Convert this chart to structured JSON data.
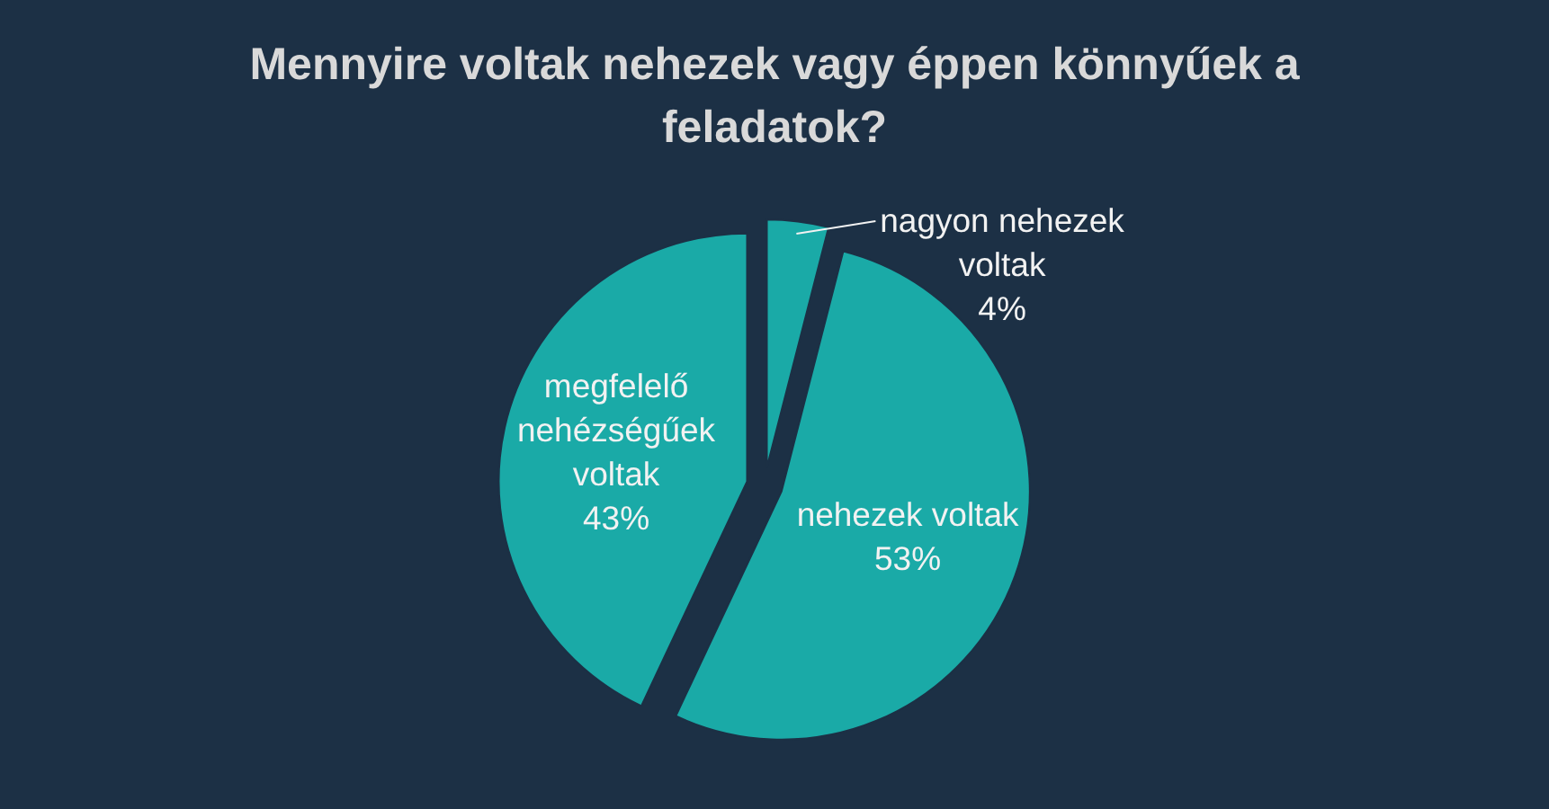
{
  "chart_data": {
    "type": "pie",
    "title": "Mennyire voltak nehezek vagy éppen könnyűek a feladatok?",
    "categories": [
      "nagyon nehezek voltak",
      "nehezek voltak",
      "megfelelő nehézségűek voltak"
    ],
    "values": [
      4,
      53,
      43
    ],
    "value_labels": [
      "4%",
      "53%",
      "43%"
    ],
    "colors": [
      "#1aaaa7",
      "#1aaaa7",
      "#1aaaa7"
    ]
  }
}
